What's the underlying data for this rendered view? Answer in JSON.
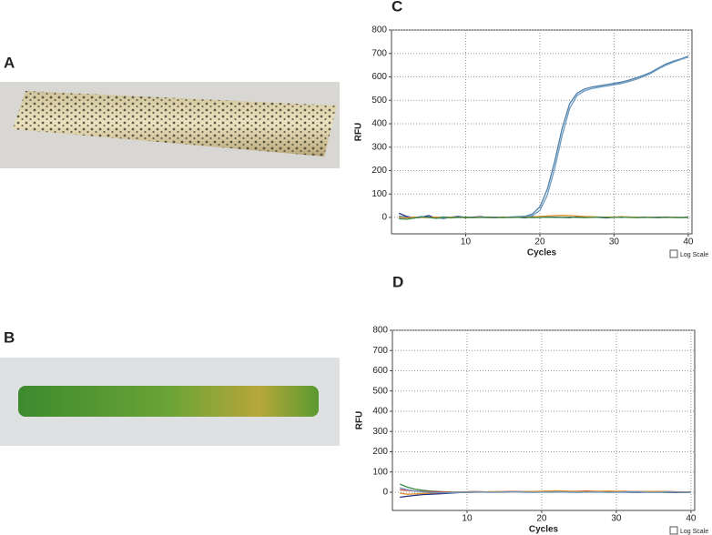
{
  "panel_labels": [
    "A",
    "B"
  ],
  "chart_data": [
    {
      "type": "line",
      "title": "C",
      "xlabel": "Cycles",
      "ylabel": "RFU",
      "checkbox_label": "Log Scale",
      "xlim": [
        0,
        40.5
      ],
      "xticks": [
        10,
        20,
        30,
        40
      ],
      "ylim": [
        -70,
        800
      ],
      "yticks": [
        0,
        100,
        200,
        300,
        400,
        500,
        600,
        700,
        800
      ],
      "grid": true,
      "x": [
        1,
        2,
        3,
        4,
        5,
        6,
        7,
        8,
        9,
        10,
        11,
        12,
        13,
        14,
        15,
        16,
        17,
        18,
        19,
        20,
        21,
        22,
        23,
        24,
        25,
        26,
        27,
        28,
        29,
        30,
        31,
        32,
        33,
        34,
        35,
        36,
        37,
        38,
        39,
        40
      ],
      "series": [
        {
          "color": "#4f7fa8",
          "values": [
            5,
            2,
            -3,
            4,
            1,
            0,
            -5,
            2,
            3,
            1,
            0,
            2,
            -1,
            1,
            0,
            2,
            3,
            5,
            15,
            45,
            120,
            240,
            380,
            485,
            530,
            548,
            557,
            562,
            567,
            572,
            578,
            586,
            596,
            607,
            620,
            638,
            655,
            667,
            677,
            688
          ]
        },
        {
          "color": "#6a9ac0",
          "values": [
            2,
            0,
            -1,
            3,
            0,
            -2,
            -4,
            1,
            2,
            0,
            1,
            0,
            -2,
            0,
            1,
            1,
            2,
            3,
            8,
            30,
            95,
            210,
            350,
            465,
            520,
            540,
            550,
            556,
            561,
            566,
            572,
            580,
            590,
            602,
            616,
            634,
            650,
            663,
            674,
            685
          ]
        },
        {
          "color": "#1f2f80",
          "values": [
            18,
            5,
            -2,
            0,
            8,
            -3,
            2,
            0,
            4,
            -2,
            1,
            3,
            0,
            -1,
            2,
            0,
            1,
            -2,
            3,
            0,
            2,
            1,
            0,
            -1,
            2,
            0,
            1,
            0,
            -2,
            1,
            0,
            2,
            0,
            1,
            0,
            -1,
            1,
            0,
            0,
            1
          ]
        },
        {
          "color": "#e0902a",
          "values": [
            0,
            -2,
            1,
            0,
            -1,
            2,
            0,
            1,
            0,
            -1,
            0,
            1,
            0,
            0,
            1,
            0,
            0,
            1,
            2,
            4,
            6,
            8,
            9,
            8,
            6,
            4,
            3,
            2,
            1,
            2,
            3,
            2,
            1,
            0,
            1,
            0,
            0,
            1,
            0,
            0
          ]
        },
        {
          "color": "#3a8a4a",
          "values": [
            -5,
            -8,
            -3,
            2,
            0,
            -4,
            1,
            -2,
            0,
            1,
            -1,
            0,
            2,
            0,
            -1,
            0,
            1,
            0,
            -1,
            0,
            1,
            0,
            0,
            1,
            0,
            -1,
            0,
            1,
            0,
            0,
            1,
            0,
            -1,
            0,
            0,
            1,
            0,
            0,
            -1,
            0
          ]
        }
      ]
    },
    {
      "type": "line",
      "title": "D",
      "xlabel": "Cycles",
      "ylabel": "RFU",
      "checkbox_label": "Log Scale",
      "xlim": [
        0,
        40.5
      ],
      "xticks": [
        10,
        20,
        30,
        40
      ],
      "ylim": [
        -90,
        800
      ],
      "yticks": [
        0,
        100,
        200,
        300,
        400,
        500,
        600,
        700,
        800
      ],
      "grid": true,
      "x": [
        1,
        2,
        3,
        4,
        5,
        6,
        7,
        8,
        9,
        10,
        11,
        12,
        13,
        14,
        15,
        16,
        17,
        18,
        19,
        20,
        21,
        22,
        23,
        24,
        25,
        26,
        27,
        28,
        29,
        30,
        31,
        32,
        33,
        34,
        35,
        36,
        37,
        38,
        39,
        40
      ],
      "series": [
        {
          "color": "#3a8a4a",
          "values": [
            40,
            25,
            15,
            10,
            6,
            4,
            2,
            1,
            0,
            -1,
            0,
            1,
            2,
            1,
            0,
            1,
            2,
            3,
            2,
            1,
            0,
            1,
            3,
            4,
            3,
            2,
            1,
            2,
            3,
            2,
            1,
            0,
            1,
            2,
            1,
            0,
            -1,
            0,
            1,
            0
          ]
        },
        {
          "color": "#1f2f80",
          "values": [
            -25,
            -20,
            -16,
            -12,
            -10,
            -8,
            -6,
            -4,
            -2,
            0,
            1,
            2,
            1,
            0,
            1,
            2,
            1,
            0,
            1,
            2,
            3,
            2,
            1,
            0,
            1,
            2,
            3,
            2,
            1,
            0,
            1,
            0,
            -1,
            0,
            1,
            0,
            -1,
            -2,
            -1,
            0
          ]
        },
        {
          "color": "#c83a3a",
          "values": [
            12,
            9,
            6,
            4,
            3,
            2,
            1,
            0,
            1,
            2,
            3,
            2,
            1,
            2,
            3,
            4,
            3,
            2,
            3,
            4,
            5,
            4,
            3,
            4,
            5,
            6,
            5,
            4,
            3,
            4,
            5,
            4,
            3,
            2,
            3,
            4,
            3,
            2,
            1,
            2
          ]
        },
        {
          "color": "#e0902a",
          "values": [
            -5,
            -10,
            -8,
            -6,
            -4,
            -3,
            -2,
            -1,
            0,
            1,
            0,
            1,
            2,
            3,
            2,
            1,
            2,
            3,
            4,
            5,
            6,
            7,
            6,
            5,
            4,
            3,
            4,
            5,
            6,
            5,
            4,
            3,
            2,
            3,
            4,
            3,
            2,
            1,
            0,
            1
          ]
        },
        {
          "color": "#6a9ac0",
          "values": [
            22,
            12,
            6,
            2,
            0,
            -2,
            -3,
            -2,
            -1,
            0,
            1,
            0,
            -1,
            0,
            1,
            2,
            1,
            0,
            -1,
            0,
            1,
            2,
            1,
            0,
            -1,
            0,
            1,
            0,
            -1,
            0,
            1,
            2,
            1,
            0,
            -1,
            0,
            1,
            0,
            -1,
            0
          ]
        }
      ]
    }
  ]
}
